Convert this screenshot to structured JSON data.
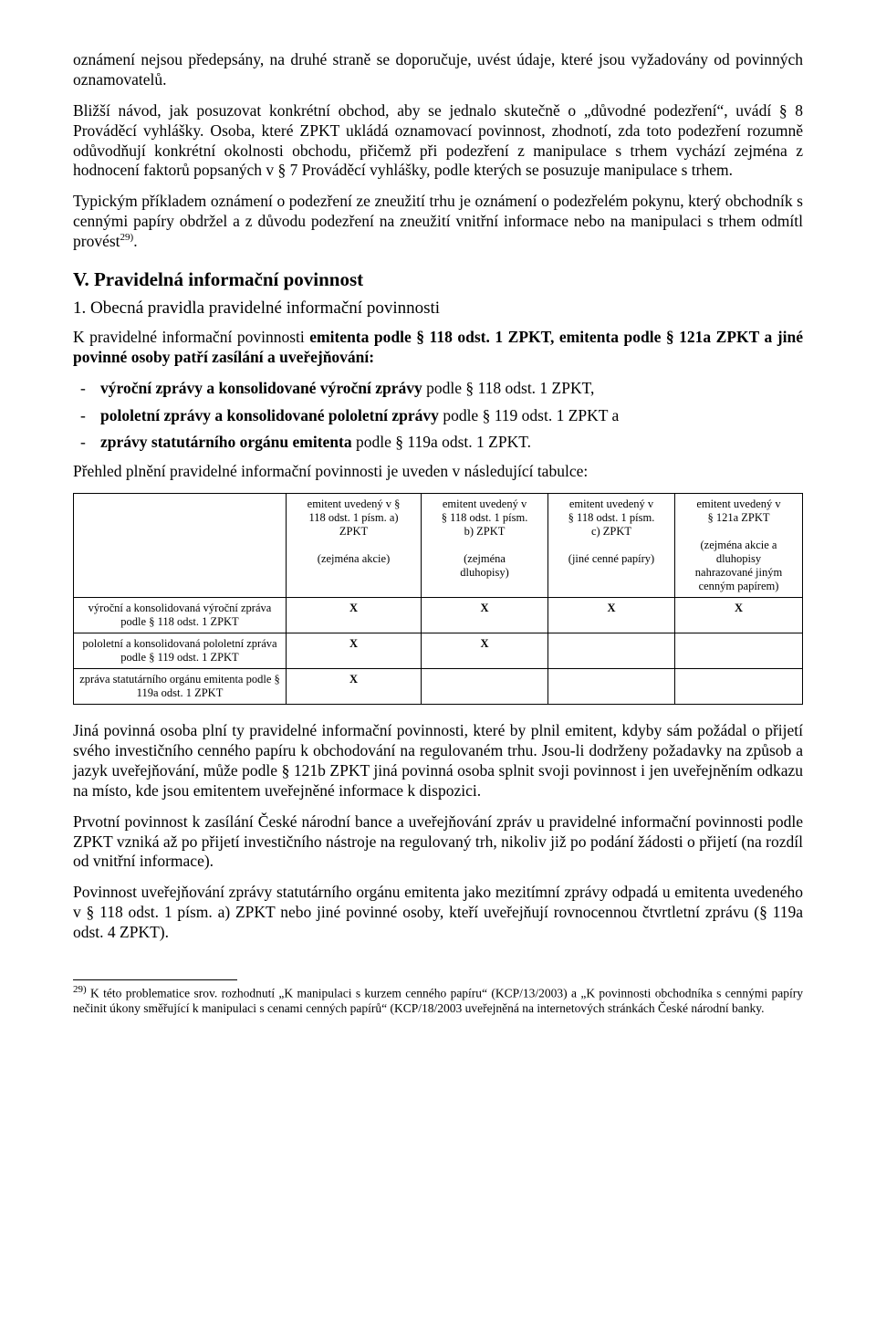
{
  "p1": "oznámení nejsou předepsány, na druhé straně se doporučuje, uvést údaje, které jsou vyžadovány od povinných oznamovatelů.",
  "p2": "Bližší návod, jak posuzovat konkrétní obchod, aby se jednalo skutečně o „důvodné podezření“, uvádí § 8 Prováděcí vyhlášky. Osoba, které ZPKT ukládá oznamovací povinnost, zhodnotí, zda toto podezření rozumně odůvodňují konkrétní okolnosti obchodu, přičemž při podezření z manipulace s trhem vychází zejména z hodnocení faktorů popsaných v § 7 Prováděcí vyhlášky, podle kterých se posuzuje manipulace s trhem.",
  "p3_a": "Typickým příkladem oznámení o podezření ze zneužití trhu je oznámení o podezřelém pokynu, který obchodník s cennými papíry obdržel a z důvodu podezření na zneužití vnitřní informace nebo na manipulaci s trhem odmítl provést",
  "p3_sup": "29)",
  "p3_b": ".",
  "h_v": "V. Pravidelná informační povinnost",
  "h_v1": "1. Obecná pravidla pravidelné informační povinnosti",
  "p4_a": "K pravidelné informační povinnosti ",
  "p4_b": "emitenta podle § 118 odst. 1 ZPKT, emitenta podle § 121a ZPKT a jiné povinné osoby patří zasílání a uveřejňování:",
  "li1_a": "výroční zprávy a konsolidované výroční zprávy",
  "li1_b": " podle § 118 odst. 1 ZPKT,",
  "li2_a": "pololetní zprávy a konsolidované pololetní zprávy",
  "li2_b": " podle § 119 odst. 1 ZPKT a",
  "li3_a": "zprávy statutárního orgánu emitenta",
  "li3_b": " podle § 119a odst. 1 ZPKT.",
  "p5": "Přehled plnění pravidelné informační povinnosti je uveden v následující tabulce:",
  "table": {
    "col1": {
      "line1": "emitent uvedený v §",
      "line2": "118 odst. 1 písm. a)",
      "line3": "ZPKT",
      "note": "(zejména akcie)"
    },
    "col2": {
      "line1": "emitent uvedený v",
      "line2": "§ 118 odst. 1 písm.",
      "line3": "b) ZPKT",
      "note": "(zejména",
      "note2": "dluhopisy)"
    },
    "col3": {
      "line1": "emitent uvedený v",
      "line2": "§ 118 odst. 1 písm.",
      "line3": "c) ZPKT",
      "note": "(jiné cenné papíry)"
    },
    "col4": {
      "line1": "emitent uvedený v",
      "line2": "§ 121a ZPKT",
      "note": "(zejména akcie a",
      "note2": "dluhopisy",
      "note3": "nahrazované jiným",
      "note4": "cenným papírem)"
    },
    "row1": {
      "label1": "výroční a konsolidovaná výroční zpráva",
      "label2": "podle § 118 odst. 1 ZPKT",
      "c1": "X",
      "c2": "X",
      "c3": "X",
      "c4": "X"
    },
    "row2": {
      "label1": "pololetní a konsolidovaná pololetní zpráva",
      "label2": "podle § 119 odst. 1 ZPKT",
      "c1": "X",
      "c2": "X",
      "c3": "",
      "c4": ""
    },
    "row3": {
      "label1": "zpráva statutárního orgánu emitenta podle §",
      "label2": "119a odst. 1 ZPKT",
      "c1": "X",
      "c2": "",
      "c3": "",
      "c4": ""
    }
  },
  "p6": "Jiná povinná osoba plní ty pravidelné informační povinnosti, které by plnil emitent, kdyby sám požádal o přijetí svého investičního cenného papíru k obchodování na regulovaném trhu. Jsou-li dodrženy požadavky na způsob a jazyk uveřejňování, může podle § 121b ZPKT jiná povinná osoba splnit svoji povinnost i jen uveřejněním odkazu na místo, kde jsou emitentem uveřejněné informace k dispozici.",
  "p7": "Prvotní povinnost k zasílání České národní bance a uveřejňování zpráv u pravidelné informační povinnosti podle ZPKT vzniká až po přijetí investičního nástroje na regulovaný trh, nikoliv již po podání žádosti o přijetí (na rozdíl od vnitřní informace).",
  "p8": "Povinnost uveřejňování zprávy statutárního orgánu emitenta jako mezitímní zprávy odpadá u emitenta uvedeného v § 118 odst. 1 písm. a) ZPKT nebo jiné povinné osoby, kteří uveřejňují rovnocennou čtvrtletní zprávu (§ 119a odst. 4 ZPKT).",
  "fn": {
    "sup": "29)",
    "text": " K této problematice srov. rozhodnutí „K manipulaci s kurzem cenného papíru“ (KCP/13/2003) a „K povinnosti obchodníka s cennými papíry nečinit úkony směřující k manipulaci s cenami cenných papírů“ (KCP/18/2003 uveřejněná na internetových stránkách České národní banky."
  }
}
